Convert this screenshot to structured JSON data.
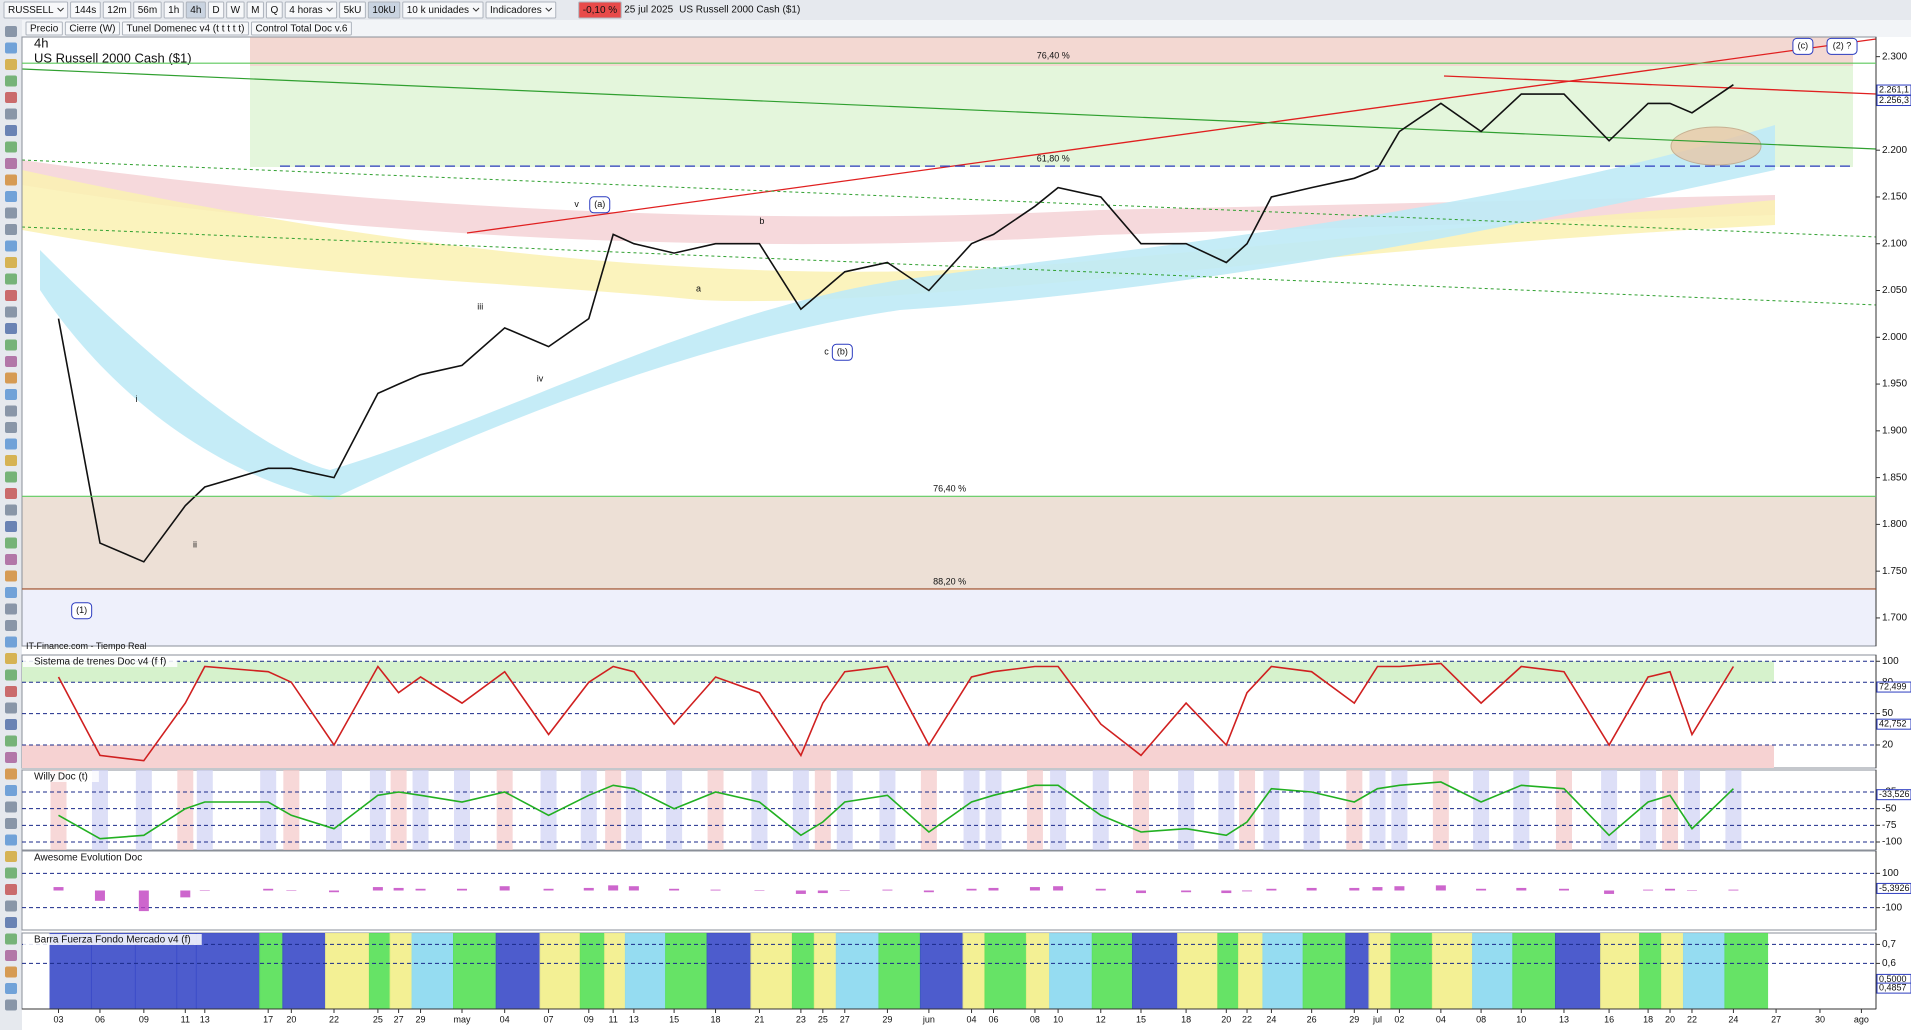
{
  "toolbar": {
    "symbol": "RUSSELL",
    "timeframes": [
      "144s",
      "12m",
      "56m",
      "1h",
      "4h",
      "D",
      "W",
      "M",
      "Q"
    ],
    "period": "4 horas",
    "units": [
      "5kU",
      "10kU"
    ],
    "units_select": "10 k unidades",
    "indicators": "Indicadores",
    "change": "-0,10 %",
    "date": "25 jul 2025",
    "instrument": "US Russell 2000 Cash ($1)"
  },
  "indicator_bar": [
    "Precio",
    "Cierre (W)",
    "Tunel Domenec v4 (t t t t t)",
    "Control Total Doc v.6"
  ],
  "footer_source": "IT-Finance.com - Tiempo Real",
  "chart_data": [
    {
      "type": "line",
      "title": "4h",
      "subtitle": "US Russell 2000 Cash ($1)",
      "color": "#111111",
      "categories": [
        "03",
        "06",
        "09",
        "11",
        "13",
        "17",
        "20",
        "22",
        "25",
        "27",
        "29",
        "may",
        "04",
        "07",
        "09",
        "11",
        "13",
        "15",
        "18",
        "21",
        "23",
        "25",
        "27",
        "29",
        "jun",
        "04",
        "06",
        "08",
        "10",
        "12",
        "15",
        "18",
        "20",
        "22",
        "24",
        "26",
        "29",
        "jul",
        "02",
        "04",
        "08",
        "10",
        "13",
        "16",
        "18",
        "20",
        "22",
        "24",
        "27",
        "30",
        "ago"
      ],
      "values": [
        2.02,
        1.78,
        1.76,
        1.82,
        1.84,
        1.86,
        1.86,
        1.85,
        1.94,
        1.95,
        1.96,
        1.97,
        2.01,
        1.99,
        2.02,
        2.11,
        2.1,
        2.09,
        2.1,
        2.1,
        2.03,
        2.05,
        2.07,
        2.08,
        2.05,
        2.1,
        2.11,
        2.14,
        2.16,
        2.15,
        2.1,
        2.1,
        2.08,
        2.1,
        2.15,
        2.16,
        2.17,
        2.18,
        2.22,
        2.25,
        2.22,
        2.26,
        2.26,
        2.21,
        2.25,
        2.25,
        2.24,
        2.27,
        null,
        null,
        null
      ],
      "ylim": [
        1.67,
        2.321
      ],
      "yticks": [
        {
          "value": 2.3,
          "label": "2.300"
        },
        {
          "value": 2.25,
          "label": "2.250"
        },
        {
          "value": 2.2,
          "label": "2.200"
        },
        {
          "value": 2.15,
          "label": "2.150"
        },
        {
          "value": 2.1,
          "label": "2.100"
        },
        {
          "value": 2.05,
          "label": "2.050"
        },
        {
          "value": 2.0,
          "label": "2.000"
        },
        {
          "value": 1.95,
          "label": "1.950"
        },
        {
          "value": 1.9,
          "label": "1.900"
        },
        {
          "value": 1.85,
          "label": "1.850"
        },
        {
          "value": 1.8,
          "label": "1.800"
        },
        {
          "value": 1.75,
          "label": "1.750"
        },
        {
          "value": 1.7,
          "label": "1.700"
        }
      ],
      "last_values": [
        {
          "value": 2.2611,
          "label": "2.261,1"
        },
        {
          "value": 2.2563,
          "label": "2.256,3"
        }
      ],
      "fib_levels": [
        {
          "value": 2.293,
          "label": "76,40 %",
          "color": "#5cc85c"
        },
        {
          "value": 2.183,
          "label": "61,80 %",
          "color": "#2c3cc0"
        },
        {
          "value": 1.83,
          "label": "76,40 %",
          "color": "#5cc85c"
        },
        {
          "value": 1.731,
          "label": "88,20 %",
          "color": "#a05030"
        }
      ],
      "annotations": [
        "(1)",
        "(a)",
        "(b)",
        "(c)",
        "(2) ?",
        "v",
        "b",
        "a",
        "c",
        "iii",
        "iv",
        "ii",
        "i"
      ]
    },
    {
      "type": "line",
      "title": "Sistema de trenes Doc v4 (f f)",
      "color": "#d02020",
      "values": [
        85,
        10,
        5,
        60,
        95,
        90,
        80,
        20,
        95,
        70,
        85,
        60,
        90,
        30,
        80,
        95,
        90,
        40,
        85,
        70,
        10,
        60,
        90,
        95,
        20,
        85,
        90,
        95,
        95,
        40,
        10,
        60,
        20,
        70,
        95,
        90,
        60,
        95,
        95,
        98,
        60,
        95,
        90,
        20,
        85,
        90,
        30,
        95,
        null,
        null,
        null
      ],
      "ylim": [
        -2,
        106
      ],
      "yticks": [
        100,
        80,
        50,
        20
      ],
      "last_values": [
        {
          "value": 72.499,
          "label": "72,499"
        },
        {
          "value": 42.752,
          "label": "42,752"
        }
      ]
    },
    {
      "type": "line",
      "title": "Willy Doc (t)",
      "color": "#22b022",
      "values": [
        -60,
        -95,
        -90,
        -50,
        -40,
        -40,
        -60,
        -80,
        -30,
        -25,
        -30,
        -40,
        -25,
        -60,
        -30,
        -15,
        -20,
        -50,
        -25,
        -40,
        -90,
        -70,
        -40,
        -30,
        -85,
        -40,
        -30,
        -15,
        -15,
        -60,
        -85,
        -80,
        -90,
        -70,
        -20,
        -25,
        -40,
        -20,
        -15,
        -10,
        -40,
        -15,
        -20,
        -90,
        -40,
        -30,
        -80,
        -20,
        null,
        null,
        null
      ],
      "ylim": [
        -112,
        8
      ],
      "yticks": [
        -25,
        -50,
        -75,
        -100
      ],
      "last_values": [
        {
          "value": -33.526,
          "label": "-33,526"
        }
      ]
    },
    {
      "type": "bar",
      "title": "Awesome Evolution Doc",
      "color": "#c040c0",
      "values": [
        20,
        -60,
        -120,
        -40,
        0,
        10,
        0,
        -10,
        20,
        15,
        10,
        10,
        25,
        10,
        15,
        30,
        25,
        10,
        5,
        0,
        -20,
        -15,
        0,
        5,
        -10,
        10,
        15,
        20,
        25,
        10,
        -15,
        -10,
        -15,
        -5,
        10,
        15,
        15,
        20,
        25,
        30,
        10,
        15,
        10,
        -20,
        5,
        10,
        0,
        5,
        null,
        null,
        null
      ],
      "ylim": [
        -230,
        230
      ],
      "yticks": [
        100,
        -100
      ],
      "last_values": [
        {
          "value": -5.3926,
          "label": "-5,3926"
        }
      ]
    },
    {
      "type": "bar",
      "title": "Barra Fuerza Fondo Mercado v4 (f)",
      "ylim": [
        0.36,
        0.76
      ],
      "yticks": [
        {
          "value": 0.7,
          "label": "0,7"
        },
        {
          "value": 0.6,
          "label": "0,6"
        }
      ],
      "last_values": [
        {
          "value": 0.5,
          "label": "0,5000"
        },
        {
          "value": 0.4857,
          "label": "0,4857"
        }
      ]
    }
  ]
}
